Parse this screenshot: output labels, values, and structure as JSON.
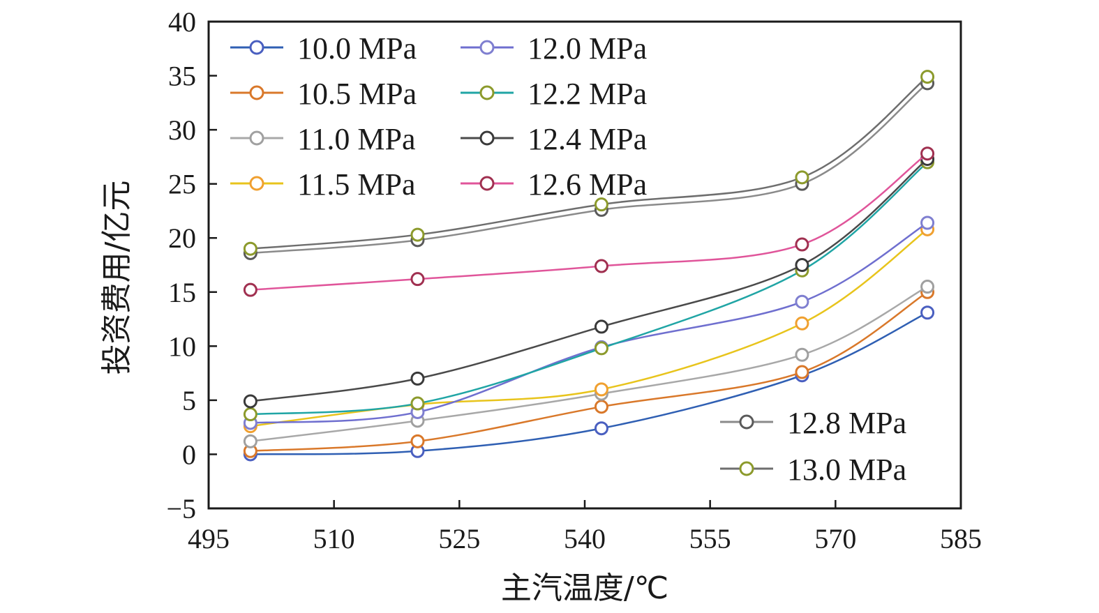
{
  "chart_data": {
    "type": "line",
    "title": "",
    "xlabel": "主汽温度/℃",
    "ylabel": "投资费用/亿元",
    "xlim": [
      495,
      585
    ],
    "ylim": [
      -5,
      40
    ],
    "xticks": [
      495,
      510,
      525,
      540,
      555,
      570,
      585
    ],
    "yticks": [
      -5,
      0,
      5,
      10,
      15,
      20,
      25,
      30,
      35,
      40
    ],
    "xtick_labels": [
      "495",
      "510",
      "525",
      "540",
      "555",
      "570",
      "585"
    ],
    "ytick_labels": [
      "−5",
      "0",
      "5",
      "10",
      "15",
      "20",
      "25",
      "30",
      "35",
      "40"
    ],
    "grid": false,
    "legend_placement": "top-left (two columns) and bottom-right",
    "x": [
      500,
      520,
      542,
      566,
      581
    ],
    "series": [
      {
        "name": "10.0 MPa",
        "color": "#2f5fb3",
        "values": [
          0.0,
          0.3,
          2.4,
          7.3,
          13.1
        ]
      },
      {
        "name": "10.5 MPa",
        "color": "#d9782a",
        "values": [
          0.3,
          1.2,
          4.4,
          7.6,
          15.0
        ]
      },
      {
        "name": "11.0 MPa",
        "color": "#a8a8a8",
        "values": [
          1.2,
          3.1,
          5.6,
          9.2,
          15.5
        ]
      },
      {
        "name": "11.5 MPa",
        "color": "#e8c41c",
        "values": [
          2.6,
          4.6,
          6.0,
          12.1,
          20.8
        ]
      },
      {
        "name": "12.0 MPa",
        "color": "#6f6fcf",
        "values": [
          2.9,
          3.9,
          9.9,
          14.1,
          21.4
        ]
      },
      {
        "name": "12.2 MPa",
        "color": "#20a5a5",
        "values": [
          3.7,
          4.7,
          9.8,
          17.0,
          27.0
        ]
      },
      {
        "name": "12.4 MPa",
        "color": "#4a4a4a",
        "values": [
          4.9,
          7.0,
          11.8,
          17.5,
          27.3
        ]
      },
      {
        "name": "12.6 MPa",
        "color": "#e0559a",
        "values": [
          15.2,
          16.2,
          17.4,
          19.4,
          27.8
        ]
      },
      {
        "name": "12.8 MPa",
        "color": "#8a8a8a",
        "values": [
          18.6,
          19.8,
          22.6,
          25.0,
          34.3
        ]
      },
      {
        "name": "13.0 MPa",
        "color": "#6e6e6e",
        "values": [
          19.0,
          20.3,
          23.1,
          25.6,
          34.9
        ]
      }
    ],
    "marker_colors": {
      "10.0 MPa": "#4a5fc0",
      "10.5 MPa": "#d9782a",
      "11.0 MPa": "#a0a0a0",
      "11.5 MPa": "#f0a030",
      "12.0 MPa": "#7f7fd0",
      "12.2 MPa": "#8c9a2c",
      "12.4 MPa": "#3a3a3a",
      "12.6 MPa": "#a03050",
      "12.8 MPa": "#5a5a5a",
      "13.0 MPa": "#8c9a2c"
    },
    "legend_groups": [
      [
        "10.0 MPa",
        "10.5 MPa",
        "11.0 MPa",
        "11.5 MPa"
      ],
      [
        "12.0 MPa",
        "12.2 MPa",
        "12.4 MPa",
        "12.6 MPa"
      ],
      [
        "12.8 MPa",
        "13.0 MPa"
      ]
    ]
  }
}
